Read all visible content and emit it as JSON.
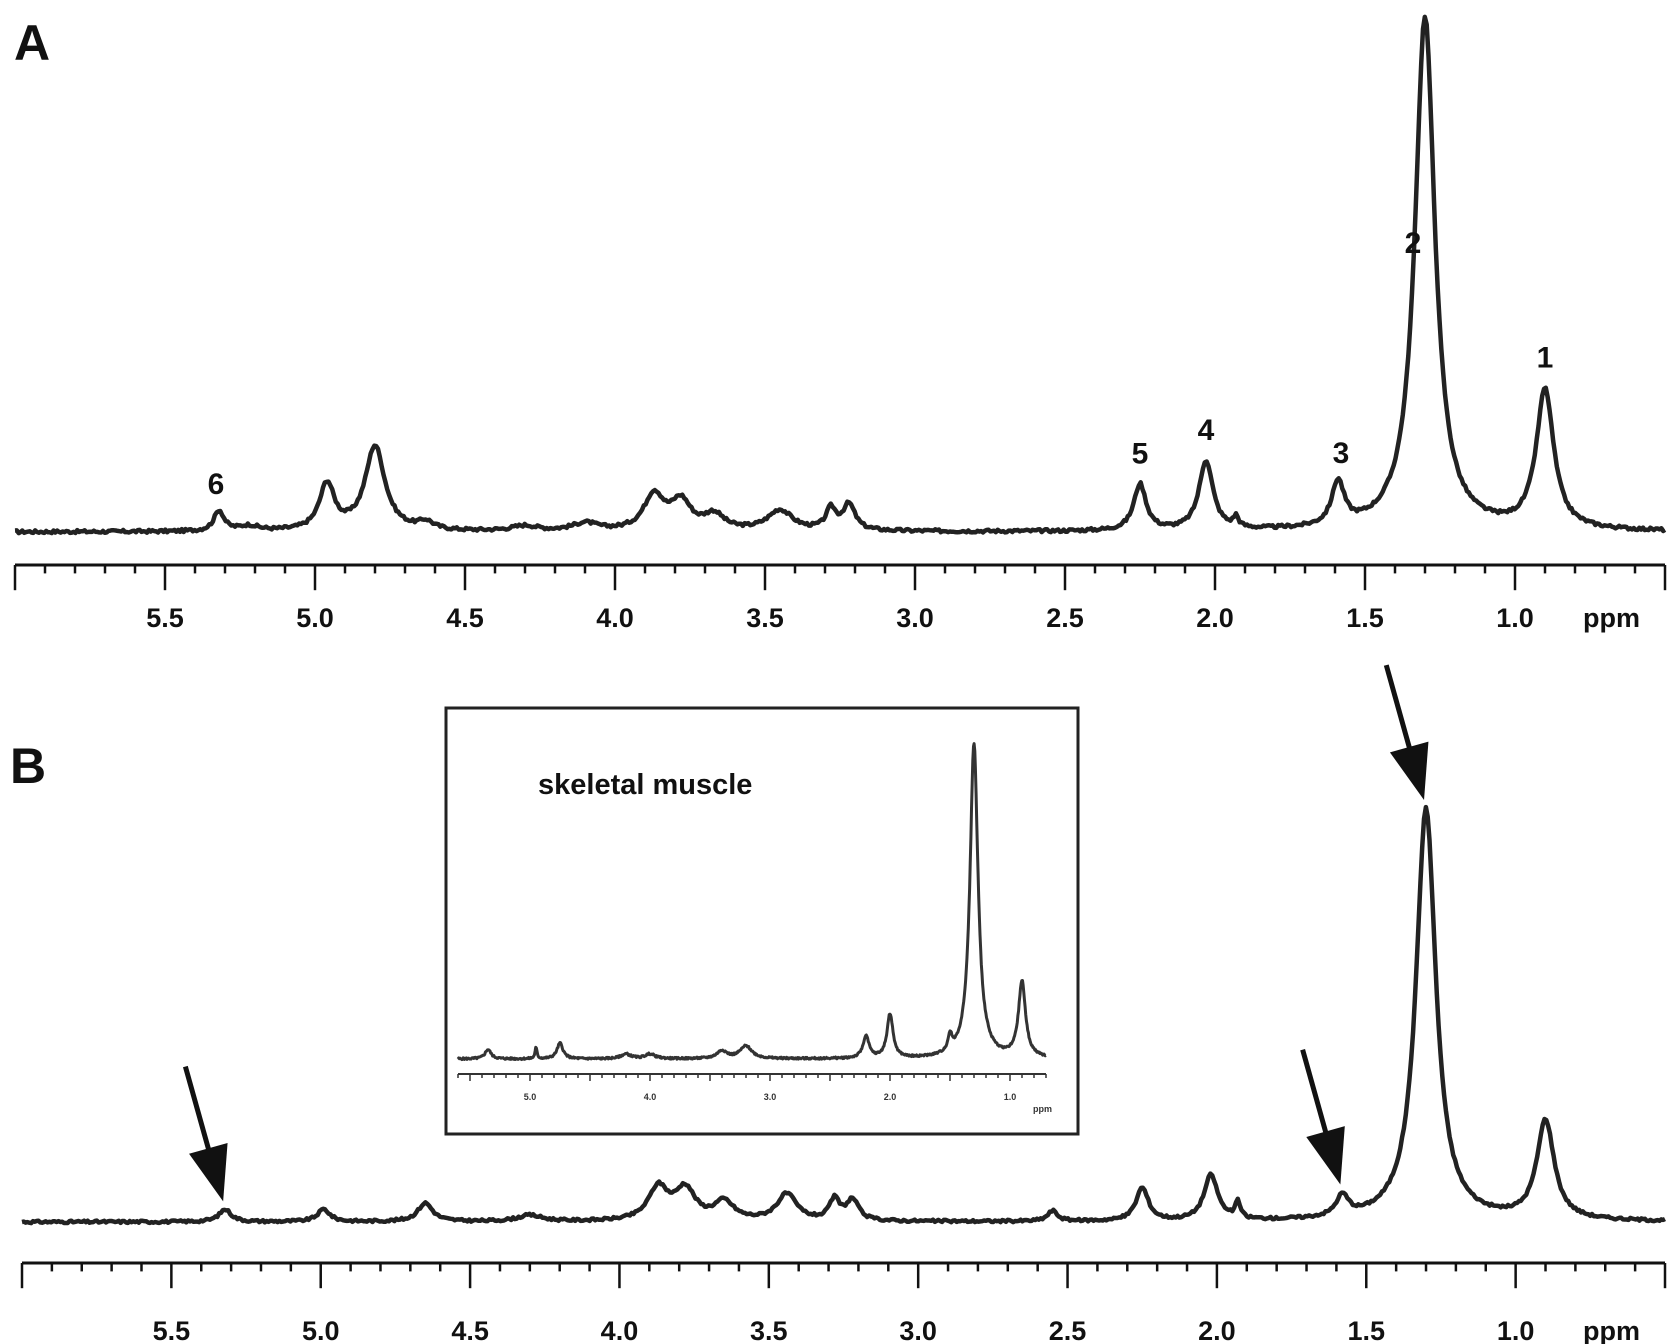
{
  "chart_data": [
    {
      "panel": "A",
      "type": "line",
      "xlabel": "ppm",
      "x_reversed": true,
      "xlim": [
        6.0,
        0.5
      ],
      "x_ticks": [
        "5.5",
        "5.0",
        "4.5",
        "4.0",
        "3.5",
        "3.0",
        "2.5",
        "2.0",
        "1.5",
        "1.0"
      ],
      "ylim": [
        0,
        1
      ],
      "grid": false,
      "peaks": [
        {
          "ppm": 0.9,
          "height": 0.27,
          "width": 0.035
        },
        {
          "ppm": 1.3,
          "height": 1.0,
          "width": 0.04
        },
        {
          "ppm": 1.59,
          "height": 0.085,
          "width": 0.025
        },
        {
          "ppm": 1.93,
          "height": 0.02,
          "width": 0.01
        },
        {
          "ppm": 2.03,
          "height": 0.135,
          "width": 0.028
        },
        {
          "ppm": 2.25,
          "height": 0.09,
          "width": 0.025
        },
        {
          "ppm": 3.22,
          "height": 0.05,
          "width": 0.025
        },
        {
          "ppm": 3.28,
          "height": 0.04,
          "width": 0.02
        },
        {
          "ppm": 3.45,
          "height": 0.04,
          "width": 0.05
        },
        {
          "ppm": 3.67,
          "height": 0.03,
          "width": 0.04
        },
        {
          "ppm": 3.78,
          "height": 0.055,
          "width": 0.04
        },
        {
          "ppm": 3.87,
          "height": 0.07,
          "width": 0.04
        },
        {
          "ppm": 4.1,
          "height": 0.015,
          "width": 0.05
        },
        {
          "ppm": 4.3,
          "height": 0.01,
          "width": 0.05
        },
        {
          "ppm": 4.63,
          "height": 0.015,
          "width": 0.03
        },
        {
          "ppm": 4.8,
          "height": 0.165,
          "width": 0.04
        },
        {
          "ppm": 4.96,
          "height": 0.09,
          "width": 0.03
        },
        {
          "ppm": 5.22,
          "height": 0.01,
          "width": 0.04
        },
        {
          "ppm": 5.32,
          "height": 0.04,
          "width": 0.02
        }
      ],
      "annotations": [
        {
          "text": "1",
          "ppm": 0.9
        },
        {
          "text": "2",
          "ppm": 1.34
        },
        {
          "text": "3",
          "ppm": 1.58
        },
        {
          "text": "4",
          "ppm": 2.03
        },
        {
          "text": "5",
          "ppm": 2.25
        },
        {
          "text": "6",
          "ppm": 5.33
        }
      ]
    },
    {
      "panel": "B",
      "type": "line",
      "xlabel": "ppm",
      "x_reversed": true,
      "xlim": [
        6.0,
        0.5
      ],
      "x_ticks": [
        "5.5",
        "5.0",
        "4.5",
        "4.0",
        "3.5",
        "3.0",
        "2.5",
        "2.0",
        "1.5",
        "1.0"
      ],
      "ylim": [
        0,
        1
      ],
      "grid": false,
      "peaks": [
        {
          "ppm": 0.9,
          "height": 0.24,
          "width": 0.035
        },
        {
          "ppm": 1.3,
          "height": 1.0,
          "width": 0.04
        },
        {
          "ppm": 1.58,
          "height": 0.05,
          "width": 0.025
        },
        {
          "ppm": 1.93,
          "height": 0.04,
          "width": 0.01
        },
        {
          "ppm": 2.02,
          "height": 0.11,
          "width": 0.028
        },
        {
          "ppm": 2.25,
          "height": 0.08,
          "width": 0.025
        },
        {
          "ppm": 2.55,
          "height": 0.025,
          "width": 0.02
        },
        {
          "ppm": 3.22,
          "height": 0.05,
          "width": 0.025
        },
        {
          "ppm": 3.28,
          "height": 0.05,
          "width": 0.02
        },
        {
          "ppm": 3.44,
          "height": 0.065,
          "width": 0.04
        },
        {
          "ppm": 3.65,
          "height": 0.045,
          "width": 0.04
        },
        {
          "ppm": 3.78,
          "height": 0.075,
          "width": 0.04
        },
        {
          "ppm": 3.87,
          "height": 0.08,
          "width": 0.04
        },
        {
          "ppm": 4.3,
          "height": 0.015,
          "width": 0.05
        },
        {
          "ppm": 4.65,
          "height": 0.045,
          "width": 0.03
        },
        {
          "ppm": 4.99,
          "height": 0.03,
          "width": 0.025
        },
        {
          "ppm": 5.32,
          "height": 0.03,
          "width": 0.025
        }
      ],
      "arrows_at_ppm": [
        5.32,
        1.58,
        1.3
      ],
      "inset": {
        "title": "skeletal muscle",
        "xlabel": "ppm",
        "xlim": [
          5.6,
          0.7
        ],
        "x_ticks": [
          "5.0",
          "4.0",
          "3.0",
          "2.0",
          "1.0"
        ],
        "peaks": [
          {
            "ppm": 1.3,
            "height": 1.0,
            "width": 0.04
          },
          {
            "ppm": 0.9,
            "height": 0.24,
            "width": 0.035
          },
          {
            "ppm": 1.5,
            "height": 0.05,
            "width": 0.02
          },
          {
            "ppm": 2.0,
            "height": 0.14,
            "width": 0.03
          },
          {
            "ppm": 2.2,
            "height": 0.07,
            "width": 0.03
          },
          {
            "ppm": 3.2,
            "height": 0.04,
            "width": 0.06
          },
          {
            "ppm": 3.4,
            "height": 0.025,
            "width": 0.05
          },
          {
            "ppm": 4.0,
            "height": 0.015,
            "width": 0.05
          },
          {
            "ppm": 4.2,
            "height": 0.015,
            "width": 0.05
          },
          {
            "ppm": 4.75,
            "height": 0.05,
            "width": 0.03
          },
          {
            "ppm": 4.95,
            "height": 0.035,
            "width": 0.01
          },
          {
            "ppm": 5.35,
            "height": 0.03,
            "width": 0.03
          }
        ]
      }
    }
  ]
}
